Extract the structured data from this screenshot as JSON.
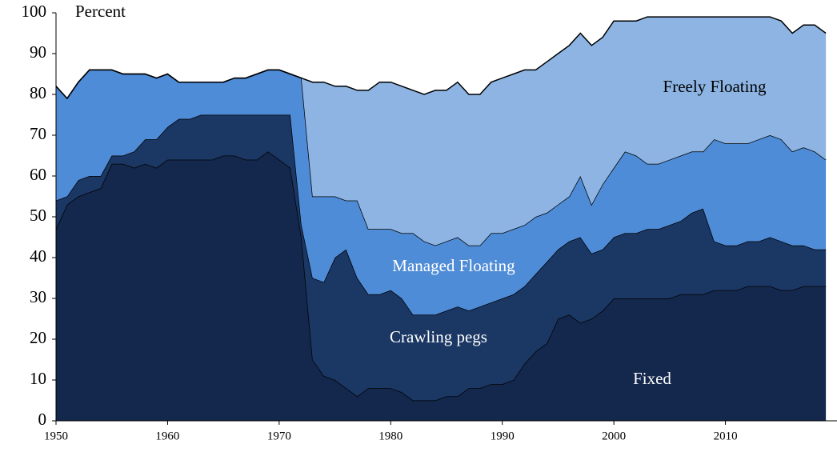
{
  "chart_data": {
    "type": "stacked_area",
    "y_axis_label": "Percent",
    "x": [
      1950,
      1951,
      1952,
      1953,
      1954,
      1955,
      1956,
      1957,
      1958,
      1959,
      1960,
      1961,
      1962,
      1963,
      1964,
      1965,
      1966,
      1967,
      1968,
      1969,
      1970,
      1971,
      1972,
      1973,
      1974,
      1975,
      1976,
      1977,
      1978,
      1979,
      1980,
      1981,
      1982,
      1983,
      1984,
      1985,
      1986,
      1987,
      1988,
      1989,
      1990,
      1991,
      1992,
      1993,
      1994,
      1995,
      1996,
      1997,
      1998,
      1999,
      2000,
      2001,
      2002,
      2003,
      2004,
      2005,
      2006,
      2007,
      2008,
      2009,
      2010,
      2011,
      2012,
      2013,
      2014,
      2015,
      2016,
      2017,
      2018,
      2019
    ],
    "series": [
      {
        "name": "Fixed",
        "color": "#14284d",
        "values": [
          47,
          53,
          55,
          56,
          57,
          63,
          63,
          62,
          63,
          62,
          64,
          64,
          64,
          64,
          64,
          65,
          65,
          64,
          64,
          66,
          64,
          62,
          45,
          15,
          11,
          10,
          8,
          6,
          8,
          8,
          8,
          7,
          5,
          5,
          5,
          6,
          6,
          8,
          8,
          9,
          9,
          10,
          14,
          17,
          19,
          25,
          26,
          24,
          25,
          27,
          30,
          30,
          30,
          30,
          30,
          30,
          31,
          31,
          31,
          32,
          32,
          32,
          33,
          33,
          33,
          32,
          32,
          33,
          33,
          33
        ]
      },
      {
        "name": "Crawling pegs",
        "color": "#1b3764",
        "values": [
          7,
          2,
          4,
          4,
          3,
          2,
          2,
          4,
          6,
          7,
          8,
          10,
          10,
          11,
          11,
          10,
          10,
          11,
          11,
          9,
          11,
          13,
          3,
          20,
          23,
          30,
          34,
          29,
          23,
          23,
          24,
          23,
          21,
          21,
          21,
          21,
          22,
          19,
          20,
          20,
          21,
          21,
          19,
          19,
          20,
          17,
          18,
          21,
          16,
          15,
          15,
          16,
          16,
          17,
          17,
          18,
          18,
          20,
          21,
          12,
          11,
          11,
          11,
          11,
          12,
          12,
          11,
          10,
          9,
          9
        ]
      },
      {
        "name": "Managed Floating",
        "color": "#4f8cd7",
        "values": [
          28,
          24,
          24,
          26,
          26,
          21,
          20,
          19,
          16,
          15,
          13,
          9,
          9,
          8,
          8,
          8,
          9,
          9,
          10,
          11,
          11,
          10,
          36,
          20,
          21,
          15,
          12,
          19,
          16,
          16,
          15,
          16,
          20,
          18,
          17,
          17,
          17,
          16,
          15,
          17,
          16,
          16,
          15,
          14,
          12,
          11,
          11,
          15,
          12,
          16,
          17,
          20,
          19,
          16,
          16,
          16,
          16,
          15,
          14,
          25,
          25,
          25,
          24,
          25,
          25,
          25,
          23,
          24,
          24,
          22
        ]
      },
      {
        "name": "Freely Floating",
        "color": "#8db4e3",
        "values": [
          0,
          0,
          0,
          0,
          0,
          0,
          0,
          0,
          0,
          0,
          0,
          0,
          0,
          0,
          0,
          0,
          0,
          0,
          0,
          0,
          0,
          0,
          0,
          28,
          28,
          27,
          28,
          27,
          34,
          36,
          36,
          36,
          35,
          36,
          38,
          37,
          38,
          37,
          37,
          37,
          38,
          38,
          38,
          36,
          37,
          37,
          37,
          35,
          39,
          36,
          36,
          32,
          33,
          36,
          36,
          35,
          34,
          33,
          33,
          30,
          31,
          31,
          31,
          30,
          29,
          29,
          29,
          30,
          31,
          31
        ]
      }
    ],
    "xlim": [
      1950,
      2020
    ],
    "xticks": [
      1950,
      1960,
      1970,
      1980,
      1990,
      2000,
      2010
    ],
    "ylim": [
      0,
      100
    ],
    "yticks": [
      0,
      10,
      20,
      30,
      40,
      50,
      60,
      70,
      80,
      90,
      100
    ]
  }
}
